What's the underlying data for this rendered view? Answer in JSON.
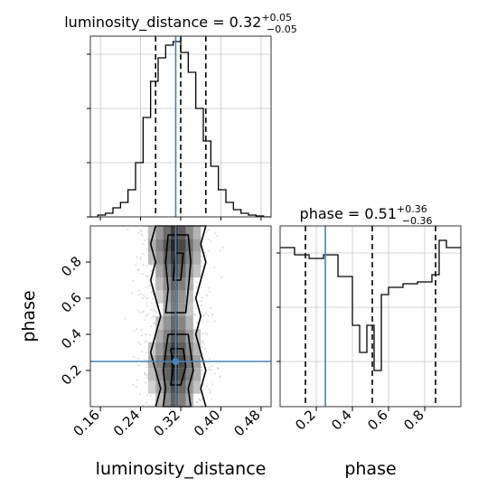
{
  "chart_data": [
    {
      "type": "histogram",
      "panel": "luminosity_distance marginal",
      "title_param": "luminosity_distance",
      "title_value": "0.32",
      "title_plus": "+0.05",
      "title_minus": "−0.05",
      "xlim": [
        0.14,
        0.5
      ],
      "ylim": [
        0,
        1.0
      ],
      "x_ticks": [
        0.16,
        0.24,
        0.32,
        0.4,
        0.48
      ],
      "y_ticks": [
        0.0,
        0.3,
        0.6,
        0.9
      ],
      "bin_edges": [
        0.14,
        0.155,
        0.17,
        0.185,
        0.2,
        0.215,
        0.23,
        0.245,
        0.26,
        0.275,
        0.29,
        0.305,
        0.32,
        0.335,
        0.35,
        0.365,
        0.38,
        0.395,
        0.41,
        0.425,
        0.44,
        0.455,
        0.47,
        0.485,
        0.5
      ],
      "counts": [
        0.0,
        0.01,
        0.02,
        0.05,
        0.08,
        0.15,
        0.3,
        0.55,
        0.75,
        0.88,
        0.95,
        0.97,
        0.91,
        0.8,
        0.6,
        0.42,
        0.28,
        0.15,
        0.08,
        0.04,
        0.02,
        0.01,
        0.005,
        0.0
      ],
      "quantiles": [
        0.27,
        0.32,
        0.37
      ],
      "truth": 0.31,
      "grid": true
    },
    {
      "type": "contour",
      "panel": "2D luminosity_distance vs phase",
      "xlabel": "luminosity_distance",
      "ylabel": "phase",
      "xlim": [
        0.14,
        0.5
      ],
      "ylim": [
        0.0,
        1.0
      ],
      "x_ticks": [
        0.16,
        0.24,
        0.32,
        0.4,
        0.48
      ],
      "x_tick_labels": [
        "0.16",
        "0.24",
        "0.32",
        "0.40",
        "0.48"
      ],
      "y_ticks": [
        0.2,
        0.4,
        0.6,
        0.8
      ],
      "y_tick_labels": [
        "0.2",
        "0.4",
        "0.6",
        "0.8"
      ],
      "truth": [
        0.31,
        0.25
      ],
      "contours": [
        [
          [
            0.27,
            0.0
          ],
          [
            0.28,
            0.1
          ],
          [
            0.27,
            0.2
          ],
          [
            0.26,
            0.3
          ],
          [
            0.27,
            0.4
          ],
          [
            0.28,
            0.5
          ],
          [
            0.27,
            0.6
          ],
          [
            0.26,
            0.7
          ],
          [
            0.27,
            0.8
          ],
          [
            0.26,
            0.9
          ],
          [
            0.27,
            1.0
          ],
          [
            0.37,
            1.0
          ],
          [
            0.36,
            0.9
          ],
          [
            0.37,
            0.8
          ],
          [
            0.36,
            0.7
          ],
          [
            0.35,
            0.6
          ],
          [
            0.36,
            0.5
          ],
          [
            0.35,
            0.4
          ],
          [
            0.36,
            0.3
          ],
          [
            0.37,
            0.2
          ],
          [
            0.36,
            0.1
          ],
          [
            0.37,
            0.0
          ]
        ],
        [
          [
            0.285,
            0.0
          ],
          [
            0.29,
            0.1
          ],
          [
            0.285,
            0.2
          ],
          [
            0.29,
            0.3
          ],
          [
            0.295,
            0.4
          ],
          [
            0.335,
            0.4
          ],
          [
            0.34,
            0.3
          ],
          [
            0.345,
            0.2
          ],
          [
            0.335,
            0.1
          ],
          [
            0.34,
            0.0
          ]
        ],
        [
          [
            0.29,
            0.52
          ],
          [
            0.295,
            0.65
          ],
          [
            0.29,
            0.8
          ],
          [
            0.295,
            0.95
          ],
          [
            0.335,
            0.95
          ],
          [
            0.34,
            0.8
          ],
          [
            0.335,
            0.65
          ],
          [
            0.33,
            0.52
          ]
        ],
        [
          [
            0.3,
            0.12
          ],
          [
            0.305,
            0.22
          ],
          [
            0.3,
            0.32
          ],
          [
            0.325,
            0.32
          ],
          [
            0.33,
            0.22
          ],
          [
            0.32,
            0.12
          ]
        ],
        [
          [
            0.305,
            0.7
          ],
          [
            0.31,
            0.85
          ],
          [
            0.325,
            0.85
          ],
          [
            0.32,
            0.7
          ]
        ]
      ]
    },
    {
      "type": "histogram",
      "panel": "phase marginal",
      "title_param": "phase",
      "title_value": "0.51",
      "title_plus": "+0.36",
      "title_minus": "−0.36",
      "xlim": [
        0.0,
        1.0
      ],
      "ylim": [
        0,
        1.0
      ],
      "x_ticks": [
        0.2,
        0.4,
        0.6,
        0.8
      ],
      "x_tick_labels": [
        "0.2",
        "0.4",
        "0.6",
        "0.8"
      ],
      "y_ticks": [
        0.25,
        0.55,
        0.85
      ],
      "bin_edges": [
        0.0,
        0.08,
        0.16,
        0.24,
        0.32,
        0.4,
        0.44,
        0.48,
        0.52,
        0.56,
        0.6,
        0.68,
        0.76,
        0.84,
        0.88,
        0.92,
        1.0
      ],
      "counts": [
        0.88,
        0.84,
        0.82,
        0.84,
        0.72,
        0.45,
        0.3,
        0.45,
        0.2,
        0.62,
        0.66,
        0.68,
        0.69,
        0.73,
        0.92,
        0.88
      ],
      "quantiles": [
        0.14,
        0.51,
        0.86
      ],
      "truth": 0.25,
      "grid": true,
      "xlabel": "phase"
    }
  ]
}
